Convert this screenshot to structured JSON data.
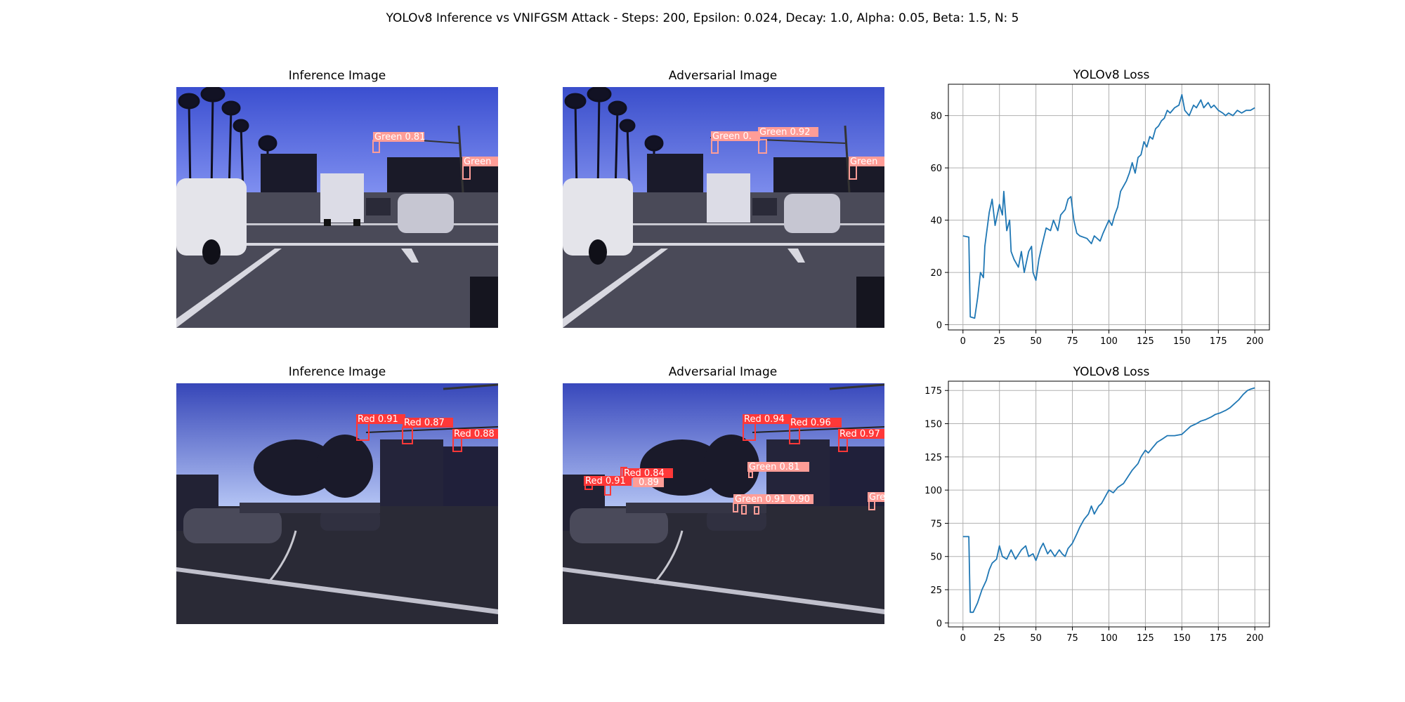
{
  "figure": {
    "suptitle": "YOLOv8 Inference vs VNIFGSM Attack - Steps: 200, Epsilon: 0.024, Decay: 1.0, Alpha: 0.05, Beta: 1.5, N: 5"
  },
  "panels": {
    "row1": {
      "inference": {
        "title": "Inference Image",
        "detections": [
          {
            "label": "Green 0.81",
            "color": "#ff9d97"
          },
          {
            "label": "Green",
            "color": "#ff9d97"
          }
        ]
      },
      "adversarial": {
        "title": "Adversarial Image",
        "detections": [
          {
            "label": "Green 0.",
            "color": "#ff9d97"
          },
          {
            "label": "Green 0.92",
            "color": "#ff9d97"
          },
          {
            "label": "Green",
            "color": "#ff9d97"
          }
        ]
      }
    },
    "row2": {
      "inference": {
        "title": "Inference Image",
        "detections": [
          {
            "label": "Red 0.91",
            "color": "#ff3838"
          },
          {
            "label": "Red 0.87",
            "color": "#ff3838"
          },
          {
            "label": "Red 0.88",
            "color": "#ff3838"
          }
        ]
      },
      "adversarial": {
        "title": "Adversarial Image",
        "detections": [
          {
            "label": "Red 0.94",
            "color": "#ff3838"
          },
          {
            "label": "Red 0.96",
            "color": "#ff3838"
          },
          {
            "label": "Red 0.97",
            "color": "#ff3838"
          },
          {
            "label": "Red 0.84",
            "color": "#ff3838"
          },
          {
            "label": "Red 0.91",
            "color": "#ff3838"
          },
          {
            "label": "0.89",
            "color": "#ff9d97"
          },
          {
            "label": "Green 0.81",
            "color": "#ff9d97"
          },
          {
            "label": "Green 0.91",
            "color": "#ff9d97"
          },
          {
            "label": "0.90",
            "color": "#ff9d97"
          },
          {
            "label": "Gre",
            "color": "#ff9d97"
          }
        ]
      }
    }
  },
  "chart_data": [
    {
      "type": "line",
      "title": "YOLOv8 Loss",
      "xlabel": "",
      "ylabel": "",
      "xlim": [
        -10,
        210
      ],
      "ylim": [
        -2,
        92
      ],
      "xticks": [
        0,
        25,
        50,
        75,
        100,
        125,
        150,
        175,
        200
      ],
      "yticks": [
        0,
        20,
        40,
        60,
        80
      ],
      "grid": true,
      "color": "#1f77b4",
      "keypoints": [
        [
          0,
          34
        ],
        [
          4,
          33.5
        ],
        [
          5,
          3
        ],
        [
          8,
          2.5
        ],
        [
          10,
          10
        ],
        [
          12,
          20
        ],
        [
          14,
          18
        ],
        [
          15,
          30
        ],
        [
          18,
          43
        ],
        [
          20,
          48
        ],
        [
          22,
          38
        ],
        [
          25,
          46
        ],
        [
          27,
          42
        ],
        [
          28,
          51
        ],
        [
          30,
          36
        ],
        [
          32,
          40
        ],
        [
          33,
          28
        ],
        [
          35,
          25
        ],
        [
          38,
          22
        ],
        [
          40,
          28
        ],
        [
          42,
          20
        ],
        [
          45,
          28
        ],
        [
          47,
          30
        ],
        [
          48,
          20
        ],
        [
          50,
          17
        ],
        [
          52,
          25
        ],
        [
          54,
          30
        ],
        [
          57,
          37
        ],
        [
          60,
          36
        ],
        [
          62,
          40
        ],
        [
          65,
          36
        ],
        [
          67,
          42
        ],
        [
          70,
          44
        ],
        [
          72,
          48
        ],
        [
          74,
          49
        ],
        [
          76,
          40
        ],
        [
          78,
          35
        ],
        [
          80,
          34
        ],
        [
          85,
          33
        ],
        [
          88,
          31
        ],
        [
          90,
          34
        ],
        [
          94,
          32
        ],
        [
          96,
          35
        ],
        [
          100,
          40
        ],
        [
          102,
          38
        ],
        [
          104,
          42
        ],
        [
          106,
          45
        ],
        [
          108,
          51
        ],
        [
          110,
          53
        ],
        [
          112,
          55
        ],
        [
          114,
          58
        ],
        [
          116,
          62
        ],
        [
          118,
          58
        ],
        [
          120,
          64
        ],
        [
          122,
          65
        ],
        [
          124,
          70
        ],
        [
          126,
          68
        ],
        [
          128,
          72
        ],
        [
          130,
          71
        ],
        [
          132,
          75
        ],
        [
          134,
          76
        ],
        [
          136,
          78
        ],
        [
          138,
          79
        ],
        [
          140,
          82
        ],
        [
          142,
          81
        ],
        [
          145,
          83
        ],
        [
          148,
          84
        ],
        [
          150,
          88
        ],
        [
          152,
          82
        ],
        [
          155,
          80
        ],
        [
          158,
          84
        ],
        [
          160,
          83
        ],
        [
          163,
          86
        ],
        [
          165,
          83
        ],
        [
          168,
          85
        ],
        [
          170,
          83
        ],
        [
          172,
          84
        ],
        [
          175,
          82
        ],
        [
          178,
          81
        ],
        [
          180,
          80
        ],
        [
          182,
          81
        ],
        [
          185,
          80
        ],
        [
          188,
          82
        ],
        [
          191,
          81
        ],
        [
          194,
          82
        ],
        [
          197,
          82
        ],
        [
          200,
          83
        ]
      ]
    },
    {
      "type": "line",
      "title": "YOLOv8 Loss",
      "xlabel": "",
      "ylabel": "",
      "xlim": [
        -10,
        210
      ],
      "ylim": [
        -3,
        182
      ],
      "xticks": [
        0,
        25,
        50,
        75,
        100,
        125,
        150,
        175,
        200
      ],
      "yticks": [
        0,
        25,
        50,
        75,
        100,
        125,
        150,
        175
      ],
      "grid": true,
      "color": "#1f77b4",
      "keypoints": [
        [
          0,
          65
        ],
        [
          4,
          65
        ],
        [
          5,
          8
        ],
        [
          7,
          8
        ],
        [
          10,
          15
        ],
        [
          13,
          25
        ],
        [
          16,
          32
        ],
        [
          18,
          40
        ],
        [
          20,
          45
        ],
        [
          23,
          48
        ],
        [
          25,
          58
        ],
        [
          27,
          50
        ],
        [
          30,
          48
        ],
        [
          33,
          55
        ],
        [
          36,
          48
        ],
        [
          40,
          55
        ],
        [
          43,
          58
        ],
        [
          45,
          50
        ],
        [
          48,
          52
        ],
        [
          50,
          47
        ],
        [
          53,
          56
        ],
        [
          55,
          60
        ],
        [
          58,
          52
        ],
        [
          60,
          55
        ],
        [
          63,
          50
        ],
        [
          66,
          55
        ],
        [
          68,
          52
        ],
        [
          70,
          50
        ],
        [
          72,
          56
        ],
        [
          75,
          60
        ],
        [
          78,
          67
        ],
        [
          80,
          72
        ],
        [
          83,
          78
        ],
        [
          86,
          82
        ],
        [
          88,
          88
        ],
        [
          90,
          82
        ],
        [
          93,
          88
        ],
        [
          95,
          90
        ],
        [
          98,
          96
        ],
        [
          100,
          100
        ],
        [
          103,
          98
        ],
        [
          106,
          102
        ],
        [
          110,
          105
        ],
        [
          113,
          110
        ],
        [
          116,
          115
        ],
        [
          120,
          120
        ],
        [
          122,
          125
        ],
        [
          125,
          130
        ],
        [
          127,
          128
        ],
        [
          130,
          132
        ],
        [
          133,
          136
        ],
        [
          136,
          138
        ],
        [
          140,
          141
        ],
        [
          145,
          141
        ],
        [
          150,
          142
        ],
        [
          153,
          145
        ],
        [
          156,
          148
        ],
        [
          160,
          150
        ],
        [
          163,
          152
        ],
        [
          166,
          153
        ],
        [
          170,
          155
        ],
        [
          173,
          157
        ],
        [
          176,
          158
        ],
        [
          180,
          160
        ],
        [
          183,
          162
        ],
        [
          186,
          165
        ],
        [
          189,
          168
        ],
        [
          192,
          172
        ],
        [
          195,
          175
        ],
        [
          197,
          176
        ],
        [
          200,
          177
        ]
      ]
    }
  ]
}
